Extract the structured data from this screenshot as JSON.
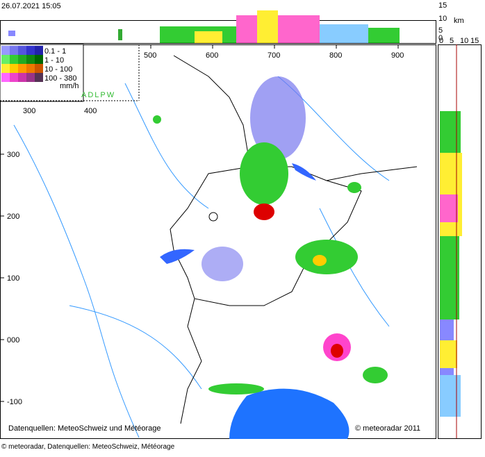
{
  "header": {
    "timestamp": "26.07.2021 15:05"
  },
  "profile_axis": {
    "height_labels": [
      "15",
      "10",
      "5",
      "0"
    ],
    "unit": "km",
    "width_labels": [
      "0",
      "5",
      "10",
      "15"
    ]
  },
  "legend": {
    "rows": [
      "0.1 -   1",
      "1 -  10",
      "10 - 100",
      "100 - 380"
    ],
    "unit": "mm/h",
    "code": "ADLPW"
  },
  "map": {
    "x_labels": [
      "500",
      "600",
      "700",
      "800",
      "900"
    ],
    "inner_x_labels": [
      "300",
      "400"
    ],
    "y_labels": [
      "300",
      "200",
      "100",
      "000",
      "-100"
    ],
    "source_note": "Datenquellen: MeteoSchweiz und Météorage",
    "copyright": "© meteoradar 2011"
  },
  "footer": {
    "text": "© meteoradar, Datenquellen: MeteoSchweiz, Météorage"
  }
}
